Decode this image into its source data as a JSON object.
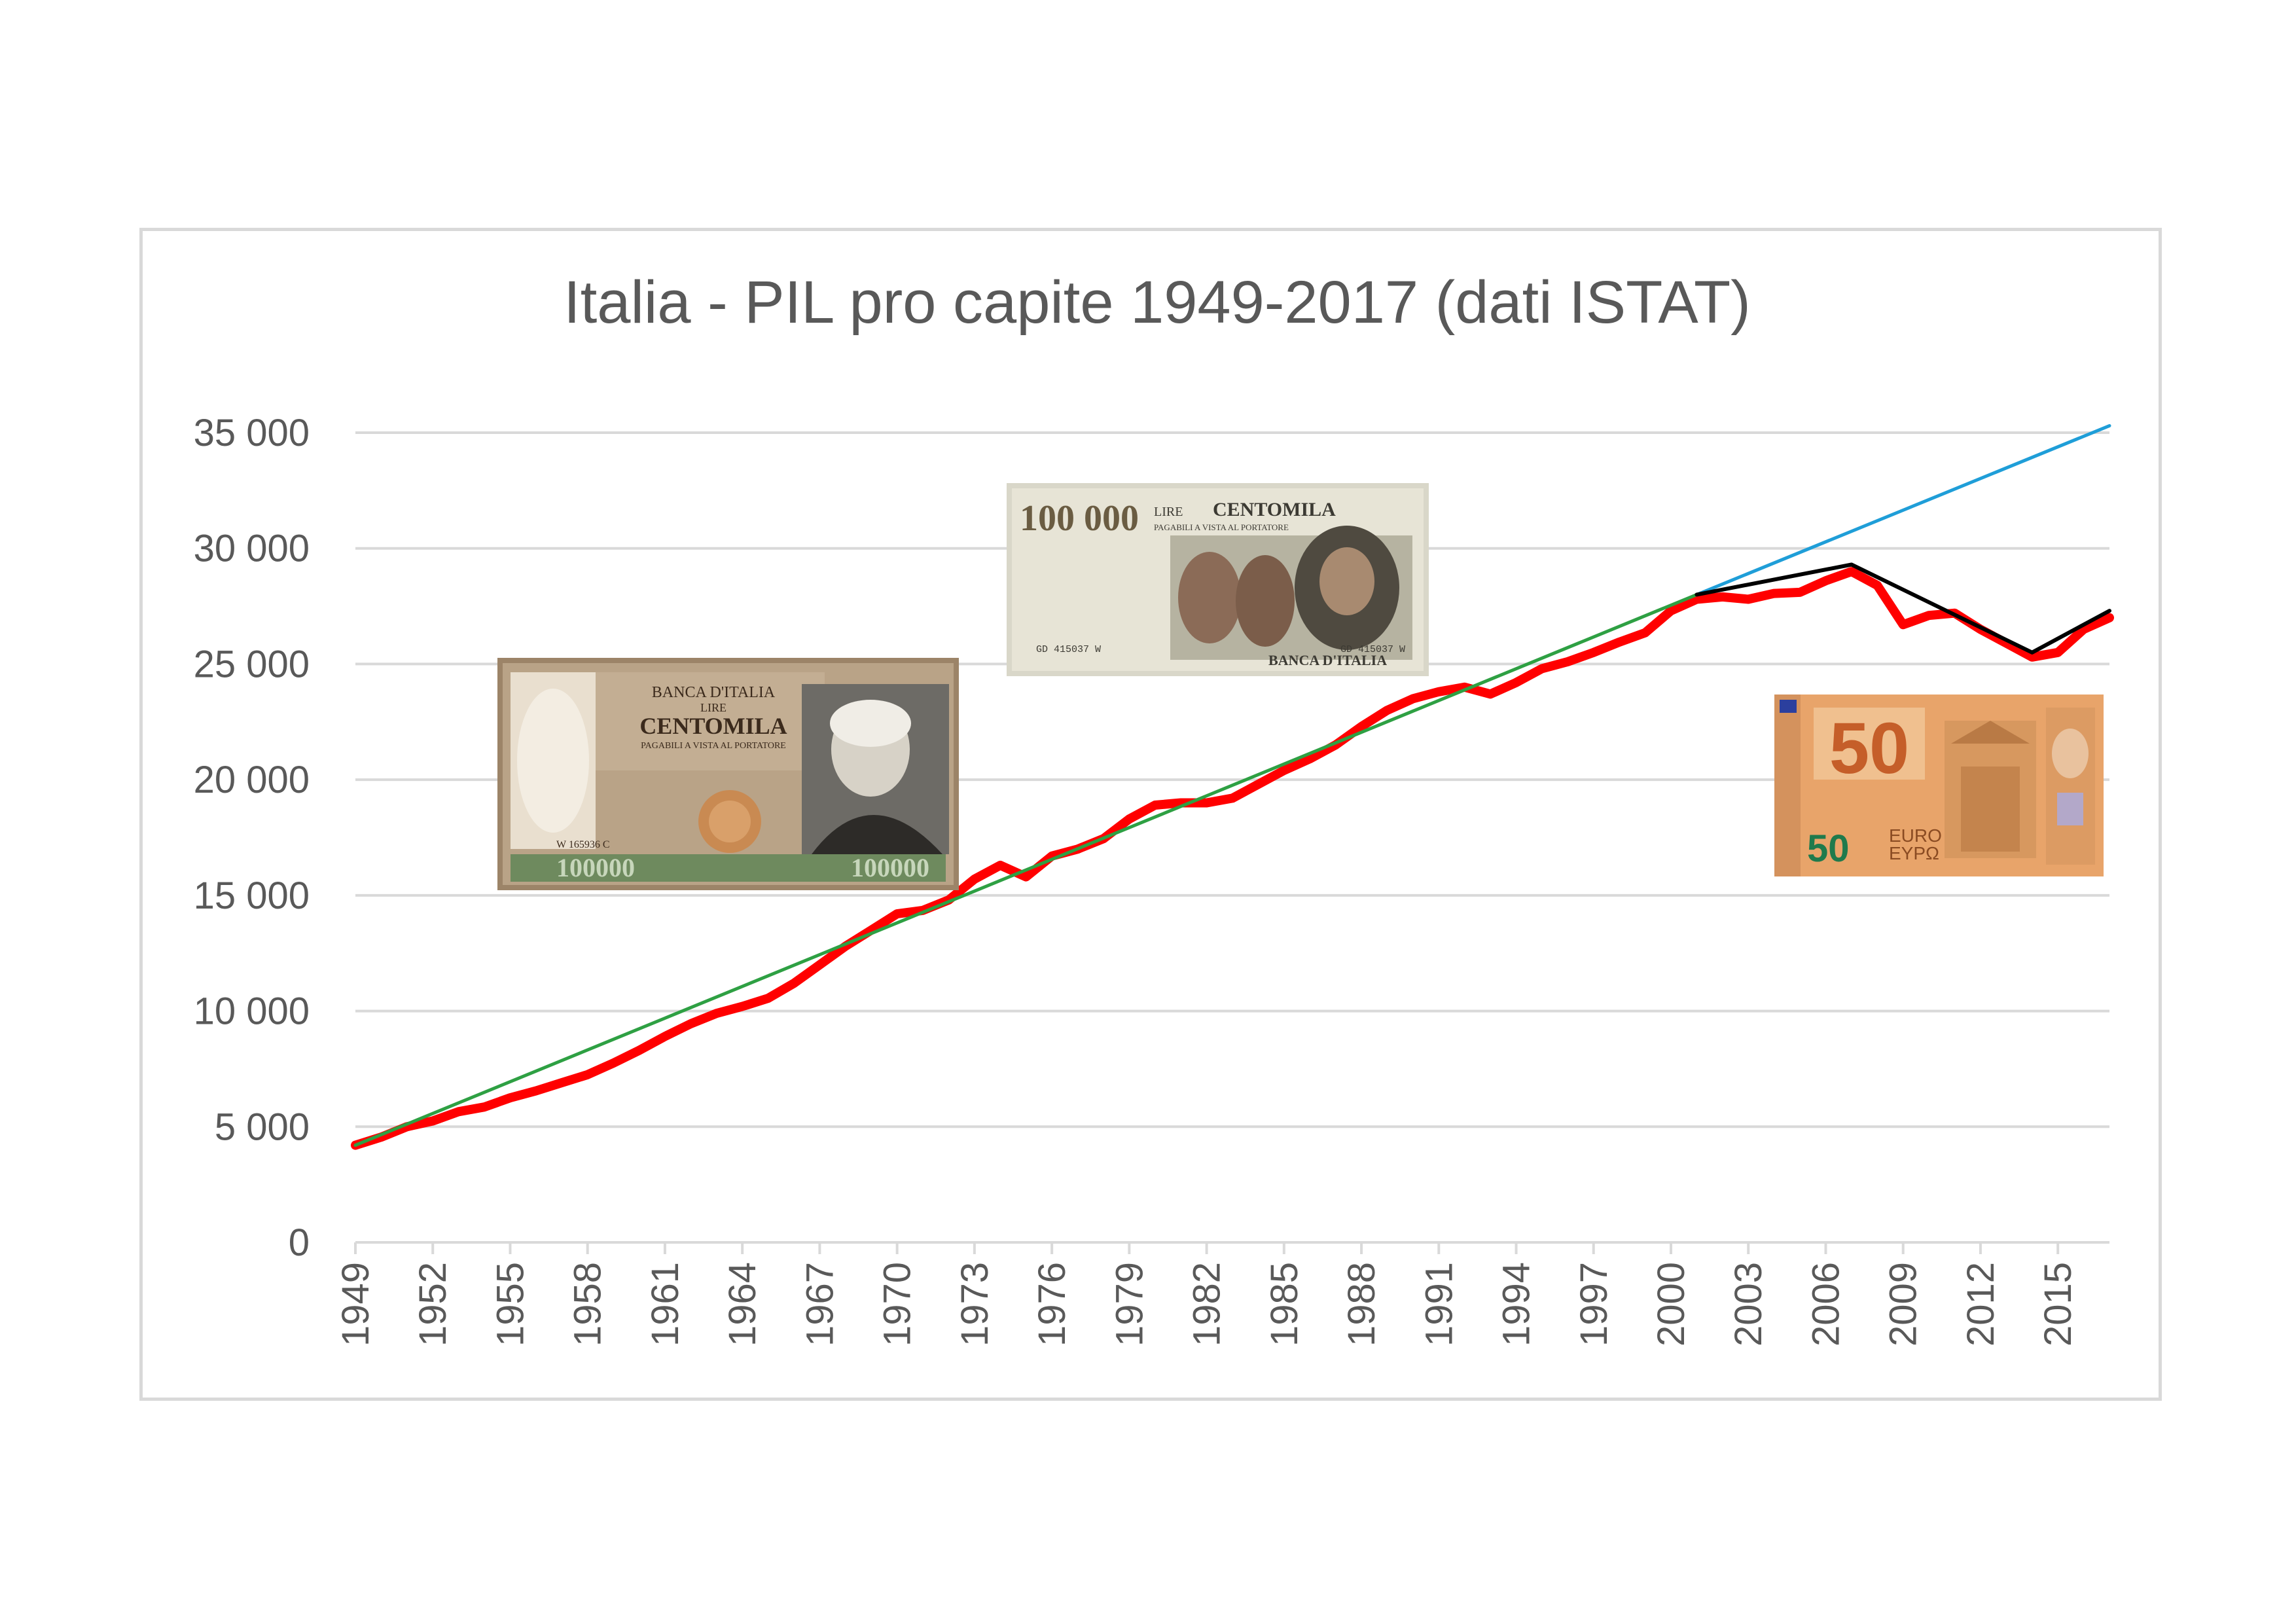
{
  "chart_data": {
    "type": "line",
    "title": "Italia - PIL pro capite 1949-2017 (dati ISTAT)",
    "xlabel": "",
    "ylabel": "",
    "ylim": [
      0,
      35000
    ],
    "yticks": [
      0,
      5000,
      10000,
      15000,
      20000,
      25000,
      30000,
      35000
    ],
    "ytick_labels": [
      "0",
      "5 000",
      "10 000",
      "15 000",
      "20 000",
      "25 000",
      "30 000",
      "35 000"
    ],
    "xlim": [
      1949,
      2017
    ],
    "xtick_labels": [
      "1949",
      "1952",
      "1955",
      "1958",
      "1961",
      "1964",
      "1967",
      "1970",
      "1973",
      "1976",
      "1979",
      "1982",
      "1985",
      "1988",
      "1991",
      "1994",
      "1997",
      "2000",
      "2003",
      "2006",
      "2009",
      "2012",
      "2015"
    ],
    "grid": true,
    "legend": "none",
    "series": [
      {
        "color": "#ff0000",
        "x": [
          1949,
          1950,
          1951,
          1952,
          1953,
          1954,
          1955,
          1956,
          1957,
          1958,
          1959,
          1960,
          1961,
          1962,
          1963,
          1964,
          1965,
          1966,
          1967,
          1968,
          1969,
          1970,
          1971,
          1972,
          1973,
          1974,
          1975,
          1976,
          1977,
          1978,
          1979,
          1980,
          1981,
          1982,
          1983,
          1984,
          1985,
          1986,
          1987,
          1988,
          1989,
          1990,
          1991,
          1992,
          1993,
          1994,
          1995,
          1996,
          1997,
          1998,
          1999,
          2000,
          2001,
          2002,
          2003,
          2004,
          2005,
          2006,
          2007,
          2008,
          2009,
          2010,
          2011,
          2012,
          2013,
          2014,
          2015,
          2016,
          2017
        ],
        "values": [
          4200,
          4550,
          5000,
          5250,
          5650,
          5850,
          6250,
          6550,
          6900,
          7250,
          7750,
          8300,
          8900,
          9450,
          9900,
          10200,
          10550,
          11200,
          12000,
          12800,
          13500,
          14200,
          14350,
          14800,
          15700,
          16300,
          15800,
          16700,
          17000,
          17450,
          18300,
          18900,
          19000,
          19000,
          19200,
          19800,
          20400,
          20900,
          21500,
          22300,
          23000,
          23500,
          23800,
          24000,
          23700,
          24200,
          24800,
          25100,
          25500,
          25950,
          26350,
          27300,
          27800,
          27900,
          27800,
          28050,
          28100,
          28600,
          29000,
          28400,
          26700,
          27100,
          27200,
          26500,
          25900,
          25300,
          25500,
          26500,
          27000
        ]
      },
      {
        "color": "#2ea043",
        "x": [
          1949,
          2001
        ],
        "values": [
          4200,
          28000
        ]
      },
      {
        "color": "#1f9ed8",
        "x": [
          2001,
          2017
        ],
        "values": [
          28000,
          35300
        ]
      },
      {
        "color": "#000000",
        "x": [
          2001,
          2007,
          2014,
          2017
        ],
        "values": [
          28000,
          29300,
          25500,
          27300
        ]
      }
    ]
  },
  "images": {
    "note_left": {
      "bank": "BANCA D'ITALIA",
      "unit": "LIRE",
      "name": "CENTOMILA",
      "payable": "PAGABILI A VISTA AL PORTATORE",
      "serial": "W 165936 C",
      "value": "100000"
    },
    "note_center": {
      "value": "100 000",
      "unit": "LIRE",
      "name": "CENTOMILA",
      "payable": "PAGABILI A VISTA AL PORTATORE",
      "bank": "BANCA D'ITALIA",
      "serial": "GD 415037 W"
    },
    "note_right": {
      "value": "50",
      "currency": "EURO",
      "currency_greek": "ΕΥΡΩ"
    }
  }
}
